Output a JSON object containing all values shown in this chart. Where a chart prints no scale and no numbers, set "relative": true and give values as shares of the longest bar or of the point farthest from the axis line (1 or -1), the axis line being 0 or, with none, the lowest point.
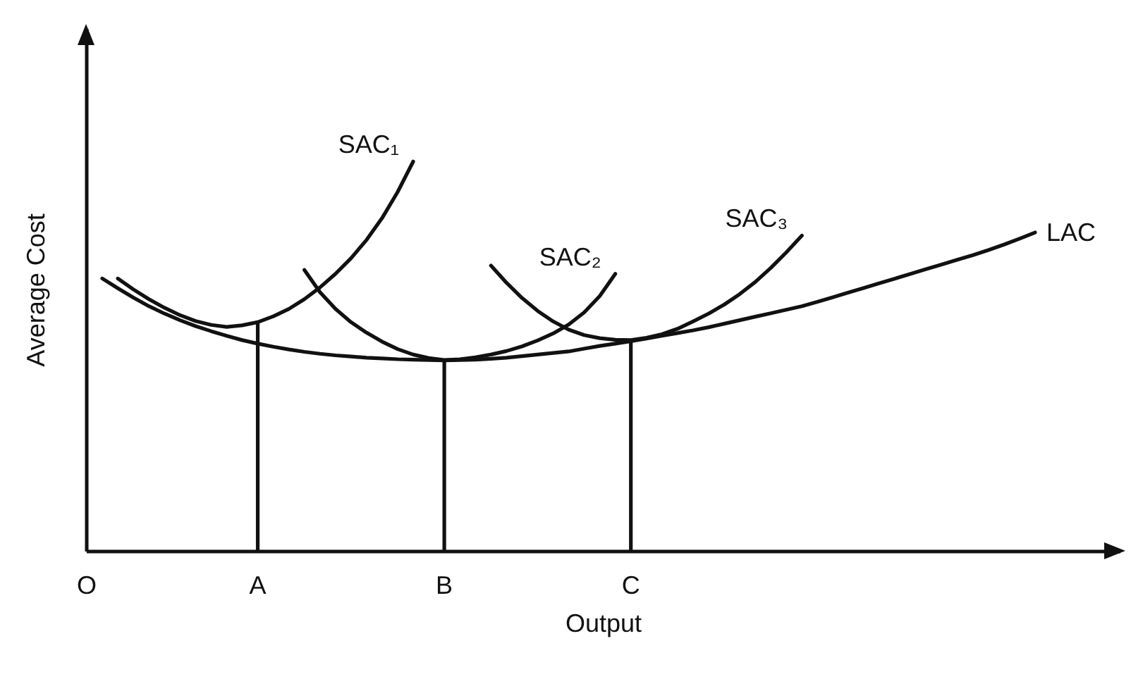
{
  "chart_data": {
    "type": "line",
    "relative": true,
    "xlabel": "Output",
    "ylabel": "Average Cost",
    "tick_labels": "x",
    "grid": false,
    "line_style": "solid",
    "categories": [
      "O",
      null,
      null,
      null,
      null,
      null,
      null,
      null,
      null,
      null,
      null,
      "A",
      null,
      null,
      null,
      null,
      null,
      null,
      null,
      null,
      null,
      null,
      null,
      "B",
      null,
      null,
      null,
      null,
      null,
      null,
      null,
      null,
      null,
      null,
      null,
      "C",
      null,
      null,
      null,
      null,
      null,
      null,
      null,
      null,
      null,
      null,
      null,
      null,
      null,
      null,
      null,
      null,
      null,
      null,
      null,
      null,
      null,
      null,
      null,
      null,
      null,
      null
    ],
    "series": [
      {
        "type": "bar",
        "color": "#111111",
        "values": [
          null,
          null,
          null,
          null,
          null,
          null,
          null,
          null,
          null,
          null,
          null,
          0.588,
          null,
          null,
          null,
          null,
          null,
          null,
          null,
          null,
          null,
          null,
          null,
          0.491,
          null,
          null,
          null,
          null,
          null,
          null,
          null,
          null,
          null,
          null,
          null,
          0.542,
          null,
          null,
          null,
          null,
          null,
          null,
          null,
          null,
          null,
          null,
          null,
          null,
          null,
          null,
          null,
          null,
          null,
          null,
          null,
          null,
          null,
          null,
          null,
          null,
          null,
          null
        ]
      },
      {
        "name": "SAC₁",
        "color": "#111111",
        "values": [
          null,
          null,
          0.7,
          0.672,
          0.647,
          0.625,
          0.606,
          0.591,
          0.581,
          0.576,
          0.58,
          0.588,
          0.603,
          0.622,
          0.647,
          0.677,
          0.712,
          0.752,
          0.799,
          0.855,
          0.922,
          1.0,
          null,
          null,
          null,
          null,
          null,
          null,
          null,
          null,
          null,
          null,
          null,
          null,
          null,
          null,
          null,
          null,
          null,
          null,
          null,
          null,
          null,
          null,
          null,
          null,
          null,
          null,
          null,
          null,
          null,
          null,
          null,
          null,
          null,
          null,
          null,
          null,
          null,
          null,
          null,
          null
        ]
      },
      {
        "name": "SAC₂",
        "color": "#111111",
        "values": [
          null,
          null,
          null,
          null,
          null,
          null,
          null,
          null,
          null,
          null,
          null,
          null,
          null,
          null,
          0.722,
          0.665,
          0.622,
          0.588,
          0.561,
          0.538,
          0.519,
          0.505,
          0.496,
          0.491,
          0.493,
          0.498,
          0.505,
          0.514,
          0.526,
          0.541,
          0.559,
          0.582,
          0.613,
          0.655,
          0.712,
          null,
          null,
          null,
          null,
          null,
          null,
          null,
          null,
          null,
          null,
          null,
          null,
          null,
          null,
          null,
          null,
          null,
          null,
          null,
          null,
          null,
          null,
          null,
          null,
          null,
          null,
          null
        ]
      },
      {
        "name": "SAC₃",
        "color": "#111111",
        "values": [
          null,
          null,
          null,
          null,
          null,
          null,
          null,
          null,
          null,
          null,
          null,
          null,
          null,
          null,
          null,
          null,
          null,
          null,
          null,
          null,
          null,
          null,
          null,
          null,
          null,
          null,
          0.733,
          0.689,
          0.65,
          0.617,
          0.59,
          0.569,
          0.555,
          0.547,
          0.543,
          0.542,
          0.548,
          0.557,
          0.571,
          0.59,
          0.61,
          0.633,
          0.66,
          0.691,
          0.727,
          0.767,
          0.81,
          null,
          null,
          null,
          null,
          null,
          null,
          null,
          null,
          null,
          null,
          null,
          null,
          null,
          null,
          null
        ]
      },
      {
        "name": "LAC",
        "color": "#111111",
        "values": [
          null,
          0.7,
          0.675,
          0.651,
          0.629,
          0.61,
          0.593,
          0.578,
          0.565,
          0.553,
          0.542,
          0.533,
          0.525,
          0.518,
          0.512,
          0.507,
          0.503,
          0.5,
          0.497,
          0.495,
          0.493,
          0.492,
          0.491,
          0.49,
          0.491,
          0.492,
          0.494,
          0.497,
          0.501,
          0.505,
          0.509,
          0.513,
          0.52,
          0.527,
          0.533,
          0.539,
          0.546,
          0.553,
          0.56,
          0.567,
          0.575,
          0.584,
          0.593,
          0.602,
          0.611,
          0.62,
          0.629,
          0.64,
          0.652,
          0.664,
          0.676,
          0.688,
          0.7,
          0.712,
          0.724,
          0.736,
          0.748,
          0.76,
          0.773,
          0.787,
          0.802,
          0.818
        ]
      }
    ]
  }
}
